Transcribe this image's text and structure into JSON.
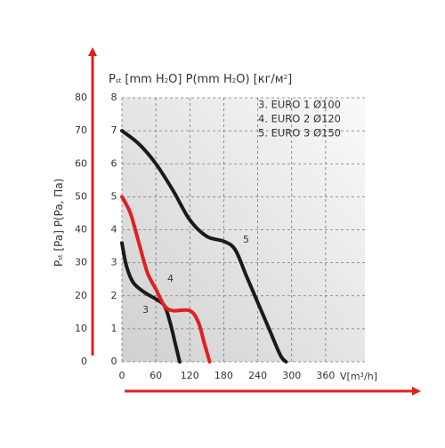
{
  "chart_data": {
    "type": "line",
    "top_axis_label": [
      {
        "text": "P"
      },
      {
        "text": "st",
        "sub": true
      },
      {
        "text": " [mm H"
      },
      {
        "text": "2",
        "sub": true
      },
      {
        "text": "O] P(mm H"
      },
      {
        "text": "2",
        "sub": true
      },
      {
        "text": "O) [кг/м"
      },
      {
        "text": "2",
        "sup": true
      },
      {
        "text": "]"
      }
    ],
    "y_axis_label": [
      {
        "text": "P"
      },
      {
        "text": "st",
        "sub": true
      },
      {
        "text": " [Pa] P(Pa, Па)"
      }
    ],
    "x_axis_label": [
      {
        "text": "V[m"
      },
      {
        "text": "3",
        "sup": true
      },
      {
        "text": "/h]"
      }
    ],
    "legend": [
      "3. EURO 1 Ø100",
      "4. EURO 2 Ø120",
      "5. EURO 3 Ø150"
    ],
    "xlim": [
      0,
      420
    ],
    "xticks": [
      0,
      60,
      120,
      180,
      240,
      300,
      360
    ],
    "ylim": [
      0,
      80
    ],
    "yticks": [
      0,
      10,
      20,
      30,
      40,
      50,
      60,
      70,
      80
    ],
    "y2lim": [
      0,
      8
    ],
    "y2ticks": [
      0,
      1,
      2,
      3,
      4,
      5,
      6,
      7,
      8
    ],
    "grid": true,
    "series": [
      {
        "name": "3",
        "color": "#1a1a1a",
        "x": [
          0,
          8,
          20,
          40,
          60,
          75,
          85,
          95,
          102
        ],
        "values": [
          36,
          29,
          24,
          21,
          19,
          17,
          12,
          5,
          0
        ]
      },
      {
        "name": "4",
        "color": "#e02020",
        "x": [
          0,
          15,
          30,
          45,
          60,
          75,
          90,
          120,
          135,
          145,
          155
        ],
        "values": [
          50,
          45,
          36,
          27,
          22,
          17,
          15.5,
          15.5,
          12,
          6,
          0
        ]
      },
      {
        "name": "5",
        "color": "#1a1a1a",
        "x": [
          0,
          30,
          60,
          90,
          120,
          150,
          180,
          200,
          220,
          240,
          260,
          280,
          290
        ],
        "values": [
          70,
          66,
          60,
          52,
          43,
          38,
          36.5,
          34,
          26,
          18,
          10,
          2,
          0
        ]
      }
    ]
  }
}
